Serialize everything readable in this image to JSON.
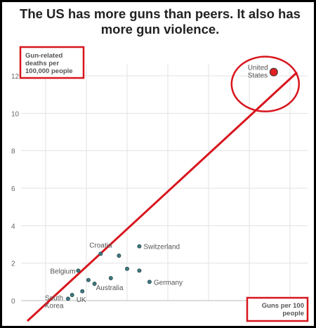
{
  "title": "The US has more guns than peers. It also has more gun violence.",
  "chart_data": {
    "type": "scatter",
    "title": "The US has more guns than peers. It also has more gun violence.",
    "ylabel": "Gun-related deaths per 100,000 people",
    "xlabel": "Guns per 100 people",
    "ylim": [
      0,
      12
    ],
    "xlim": [
      0,
      120
    ],
    "yticks": [
      0,
      2,
      4,
      6,
      8,
      10,
      12
    ],
    "grid": true,
    "points": [
      {
        "label": "United States",
        "x": 112,
        "y": 12.2,
        "highlight": true
      },
      {
        "label": "Switzerland",
        "x": 46,
        "y": 2.9
      },
      {
        "label": "Croatia",
        "x": 27,
        "y": 2.5
      },
      {
        "label": "",
        "x": 36,
        "y": 2.4
      },
      {
        "label": "Belgium",
        "x": 16,
        "y": 1.6
      },
      {
        "label": "",
        "x": 40,
        "y": 1.7
      },
      {
        "label": "",
        "x": 46,
        "y": 1.6
      },
      {
        "label": "Germany",
        "x": 51,
        "y": 1.0
      },
      {
        "label": "",
        "x": 21,
        "y": 1.1
      },
      {
        "label": "",
        "x": 32,
        "y": 1.2
      },
      {
        "label": "Australia",
        "x": 24,
        "y": 0.9
      },
      {
        "label": "",
        "x": 18,
        "y": 0.5
      },
      {
        "label": "UK",
        "x": 13,
        "y": 0.3
      },
      {
        "label": "South Korea",
        "x": 11,
        "y": 0.1
      }
    ]
  }
}
